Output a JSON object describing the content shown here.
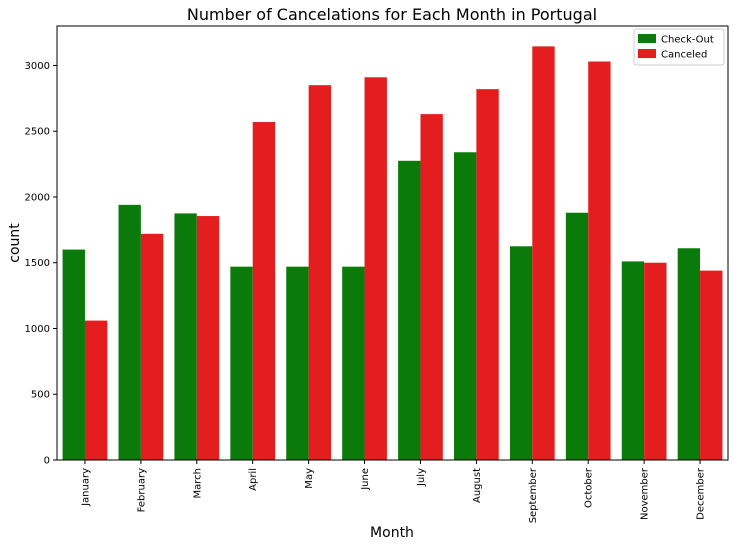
{
  "chart_data": {
    "type": "bar",
    "title": "Number of Cancelations for Each Month in Portugal",
    "xlabel": "Month",
    "ylabel": "count",
    "ylim": [
      0,
      3300
    ],
    "yticks": [
      0,
      500,
      1000,
      1500,
      2000,
      2500,
      3000
    ],
    "categories": [
      "January",
      "February",
      "March",
      "April",
      "May",
      "June",
      "July",
      "August",
      "September",
      "October",
      "November",
      "December"
    ],
    "series": [
      {
        "name": "Check-Out",
        "color": "#0a7a0a",
        "values": [
          1600,
          1940,
          1875,
          1470,
          1470,
          1470,
          2275,
          2340,
          1625,
          1880,
          1510,
          1610
        ]
      },
      {
        "name": "Canceled",
        "color": "#e41e1e",
        "values": [
          1060,
          1720,
          1855,
          2570,
          2850,
          2910,
          2630,
          2820,
          3145,
          3030,
          1500,
          1440
        ]
      }
    ],
    "legend": {
      "placement": "top-right",
      "entries": [
        "Check-Out",
        "Canceled"
      ]
    },
    "grid": false
  }
}
